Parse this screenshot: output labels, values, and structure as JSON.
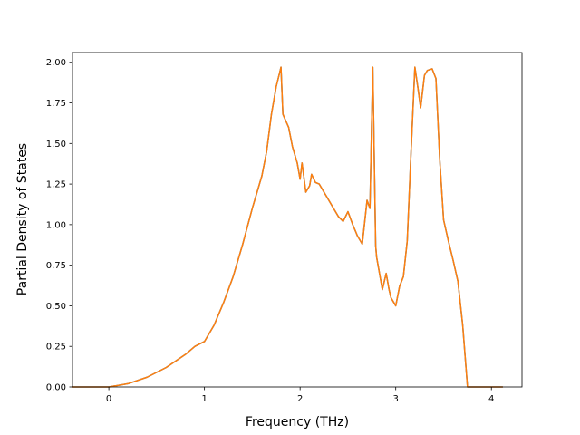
{
  "chart_data": {
    "type": "line",
    "title": "",
    "xlabel": "Frequency (THz)",
    "ylabel": "Partial Density of States",
    "xlim": [
      -0.38,
      4.32
    ],
    "ylim": [
      0,
      2.06
    ],
    "xticks": [
      0,
      1,
      2,
      3,
      4
    ],
    "xtick_labels": [
      "0",
      "1",
      "2",
      "3",
      "4"
    ],
    "yticks": [
      0,
      0.25,
      0.5,
      0.75,
      1.0,
      1.25,
      1.5,
      1.75,
      2.0
    ],
    "ytick_labels": [
      "0.00",
      "0.25",
      "0.50",
      "0.75",
      "1.00",
      "1.25",
      "1.50",
      "1.75",
      "2.00"
    ],
    "grid": false,
    "series": [
      {
        "color": "#1f77b4",
        "x": [
          -0.38,
          0.0,
          0.2,
          0.4,
          0.6,
          0.8,
          0.9,
          1.0,
          1.1,
          1.2,
          1.3,
          1.4,
          1.5,
          1.6,
          1.65,
          1.7,
          1.75,
          1.8,
          1.82,
          1.88,
          1.92,
          1.97,
          2.0,
          2.02,
          2.06,
          2.1,
          2.12,
          2.16,
          2.2,
          2.3,
          2.35,
          2.4,
          2.45,
          2.5,
          2.55,
          2.6,
          2.65,
          2.7,
          2.73,
          2.76,
          2.79,
          2.8,
          2.83,
          2.86,
          2.9,
          2.93,
          2.95,
          3.0,
          3.04,
          3.08,
          3.12,
          3.16,
          3.2,
          3.23,
          3.26,
          3.3,
          3.33,
          3.38,
          3.42,
          3.46,
          3.5,
          3.55,
          3.6,
          3.65,
          3.7,
          3.75,
          3.8,
          3.9,
          4.0,
          4.12
        ],
        "y": [
          0,
          0.0,
          0.02,
          0.06,
          0.12,
          0.2,
          0.25,
          0.28,
          0.38,
          0.52,
          0.68,
          0.88,
          1.1,
          1.3,
          1.45,
          1.68,
          1.85,
          1.97,
          1.68,
          1.6,
          1.48,
          1.38,
          1.28,
          1.38,
          1.2,
          1.24,
          1.31,
          1.26,
          1.25,
          1.15,
          1.1,
          1.05,
          1.02,
          1.08,
          1.0,
          0.93,
          0.88,
          1.15,
          1.1,
          1.97,
          0.87,
          0.8,
          0.7,
          0.6,
          0.7,
          0.6,
          0.55,
          0.5,
          0.62,
          0.68,
          0.9,
          1.45,
          1.97,
          1.85,
          1.72,
          1.92,
          1.95,
          1.96,
          1.9,
          1.4,
          1.03,
          0.9,
          0.78,
          0.65,
          0.38,
          0.0,
          0.0,
          0.0,
          0.0,
          0.0
        ]
      },
      {
        "color": "#ff7f0e",
        "x": [
          -0.38,
          0.0,
          0.2,
          0.4,
          0.6,
          0.8,
          0.9,
          1.0,
          1.1,
          1.2,
          1.3,
          1.4,
          1.5,
          1.6,
          1.65,
          1.7,
          1.75,
          1.8,
          1.82,
          1.88,
          1.92,
          1.97,
          2.0,
          2.02,
          2.06,
          2.1,
          2.12,
          2.16,
          2.2,
          2.3,
          2.35,
          2.4,
          2.45,
          2.5,
          2.55,
          2.6,
          2.65,
          2.7,
          2.73,
          2.76,
          2.79,
          2.8,
          2.83,
          2.86,
          2.9,
          2.93,
          2.95,
          3.0,
          3.04,
          3.08,
          3.12,
          3.16,
          3.2,
          3.23,
          3.26,
          3.3,
          3.33,
          3.38,
          3.42,
          3.46,
          3.5,
          3.55,
          3.6,
          3.65,
          3.7,
          3.75,
          3.8,
          3.9,
          4.0,
          4.12
        ],
        "y": [
          0,
          0.0,
          0.02,
          0.06,
          0.12,
          0.2,
          0.25,
          0.28,
          0.38,
          0.52,
          0.68,
          0.88,
          1.1,
          1.3,
          1.45,
          1.68,
          1.85,
          1.97,
          1.68,
          1.6,
          1.48,
          1.38,
          1.28,
          1.38,
          1.2,
          1.24,
          1.31,
          1.26,
          1.25,
          1.15,
          1.1,
          1.05,
          1.02,
          1.08,
          1.0,
          0.93,
          0.88,
          1.15,
          1.1,
          1.97,
          0.87,
          0.8,
          0.7,
          0.6,
          0.7,
          0.6,
          0.55,
          0.5,
          0.62,
          0.68,
          0.9,
          1.45,
          1.97,
          1.85,
          1.72,
          1.92,
          1.95,
          1.96,
          1.9,
          1.4,
          1.03,
          0.9,
          0.78,
          0.65,
          0.38,
          0.0,
          0.0,
          0.0,
          0.0,
          0.0
        ]
      }
    ]
  }
}
